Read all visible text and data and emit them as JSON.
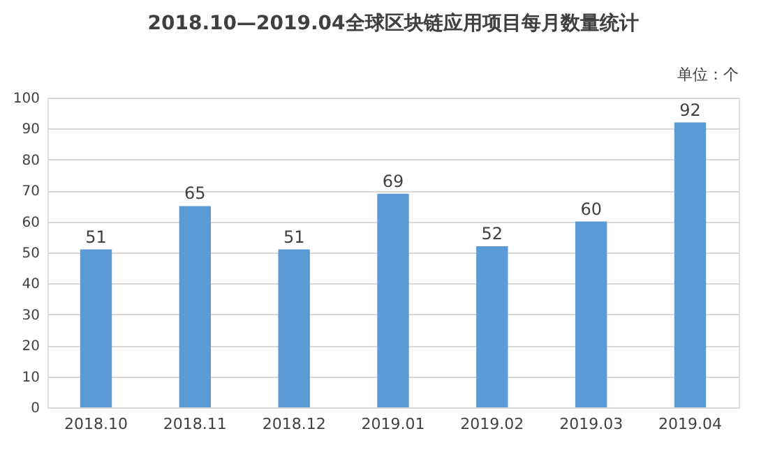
{
  "chart_data": {
    "type": "bar",
    "title": "2018.10—2019.04全球区块链应用项目每月数量统计",
    "categories": [
      "2018.10",
      "2018.11",
      "2018.12",
      "2019.01",
      "2019.02",
      "2019.03",
      "2019.04"
    ],
    "values": [
      51,
      65,
      51,
      69,
      52,
      60,
      92
    ],
    "color": "#5b9bd5",
    "ylim": [
      0,
      100
    ],
    "yticks": [
      0,
      10,
      20,
      30,
      40,
      50,
      60,
      70,
      80,
      90,
      100
    ],
    "grid": "y",
    "data_labels": true,
    "annotations": [
      "单位：个"
    ]
  }
}
